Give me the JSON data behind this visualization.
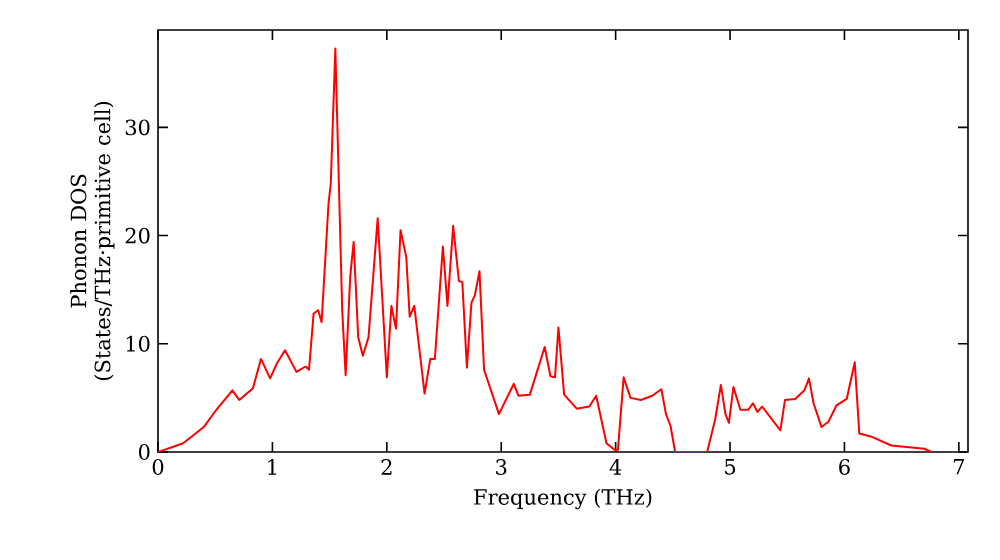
{
  "chart_data": {
    "type": "line",
    "xlabel": "Frequency (THz)",
    "ylabel": "Phonon DOS (States/THz·primitive cell)",
    "xlim": [
      0,
      7.08
    ],
    "ylim": [
      0,
      39
    ],
    "xticks": [
      0,
      1,
      2,
      3,
      4,
      5,
      6,
      7
    ],
    "yticks": [
      0,
      10,
      20,
      30
    ],
    "series": [
      {
        "color": "#ff0000",
        "x": [
          0,
          0.22,
          0.4,
          0.51,
          0.65,
          0.71,
          0.83,
          0.9,
          0.98,
          1.04,
          1.11,
          1.21,
          1.29,
          1.32,
          1.36,
          1.4,
          1.43,
          1.49,
          1.51,
          1.55,
          1.61,
          1.64,
          1.68,
          1.71,
          1.75,
          1.79,
          1.84,
          1.92,
          2.0,
          2.04,
          2.08,
          2.12,
          2.17,
          2.2,
          2.24,
          2.33,
          2.38,
          2.42,
          2.49,
          2.53,
          2.58,
          2.63,
          2.66,
          2.7,
          2.74,
          2.77,
          2.81,
          2.85,
          2.98,
          3.11,
          3.15,
          3.25,
          3.38,
          3.43,
          3.47,
          3.5,
          3.55,
          3.66,
          3.77,
          3.83,
          3.92,
          3.99,
          4.02,
          4.07,
          4.13,
          4.22,
          4.32,
          4.4,
          4.44,
          4.48,
          4.52,
          4.8,
          4.87,
          4.92,
          4.96,
          4.99,
          5.03,
          5.09,
          5.16,
          5.2,
          5.24,
          5.28,
          5.44,
          5.48,
          5.57,
          5.65,
          5.69,
          5.73,
          5.8,
          5.86,
          5.93,
          6.02,
          6.09,
          6.13,
          6.24,
          6.41,
          6.7,
          6.76
        ],
        "values": [
          0,
          0.8,
          2.3,
          3.9,
          5.7,
          4.8,
          5.9,
          8.6,
          6.8,
          8.2,
          9.4,
          7.4,
          7.9,
          7.6,
          12.8,
          13.1,
          12.0,
          22.9,
          24.8,
          37.3,
          13.1,
          7.1,
          16.2,
          19.4,
          10.6,
          8.9,
          10.6,
          21.6,
          6.9,
          13.5,
          11.4,
          20.5,
          18.0,
          12.5,
          13.5,
          5.4,
          8.6,
          8.6,
          19.0,
          13.5,
          20.9,
          15.8,
          15.7,
          7.8,
          13.8,
          14.5,
          16.7,
          7.6,
          3.5,
          6.3,
          5.2,
          5.3,
          9.7,
          7.0,
          6.9,
          11.5,
          5.3,
          4.0,
          4.2,
          5.2,
          0.8,
          0.2,
          0.2,
          6.9,
          5.0,
          4.8,
          5.2,
          5.8,
          3.5,
          2.4,
          0,
          0,
          3.0,
          6.2,
          3.5,
          2.7,
          6.0,
          3.9,
          3.9,
          4.5,
          3.7,
          4.2,
          2.0,
          4.8,
          4.9,
          5.7,
          6.8,
          4.5,
          2.3,
          2.8,
          4.3,
          4.9,
          8.3,
          1.7,
          1.4,
          0.6,
          0.3,
          0
        ]
      }
    ]
  }
}
